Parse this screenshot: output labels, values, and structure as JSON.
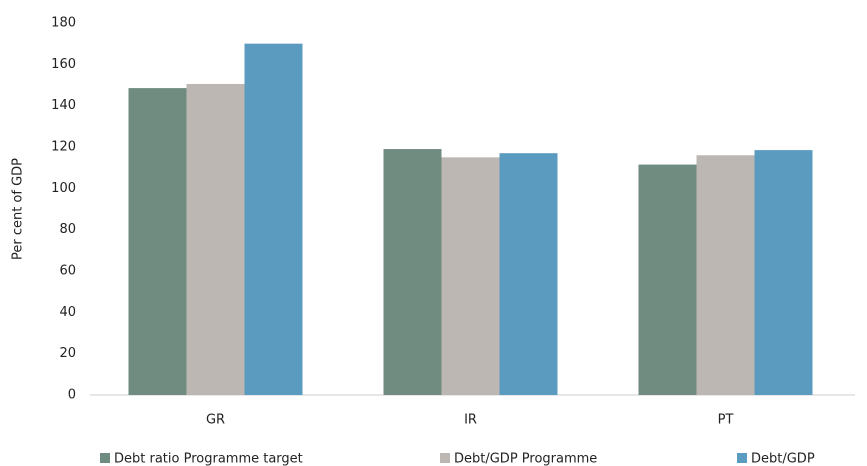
{
  "chart_data": {
    "type": "bar",
    "y_label": "Per cent of GDP",
    "categories": [
      "GR",
      "IR",
      "PT"
    ],
    "series": [
      {
        "name": "Debt ratio Programme target",
        "color": "#708b7f",
        "values": [
          148.5,
          119,
          111.5
        ]
      },
      {
        "name": "Debt/GDP Programme",
        "color": "#bcb7b2",
        "values": [
          150.5,
          115,
          116
        ]
      },
      {
        "name": "Debt/GDP",
        "color": "#5b9bc0",
        "values": [
          170,
          117,
          118.5
        ]
      }
    ],
    "ylim": [
      0,
      180
    ],
    "yticks": [
      0,
      20,
      40,
      60,
      80,
      100,
      120,
      140,
      160,
      180
    ],
    "legend": "bottom"
  }
}
